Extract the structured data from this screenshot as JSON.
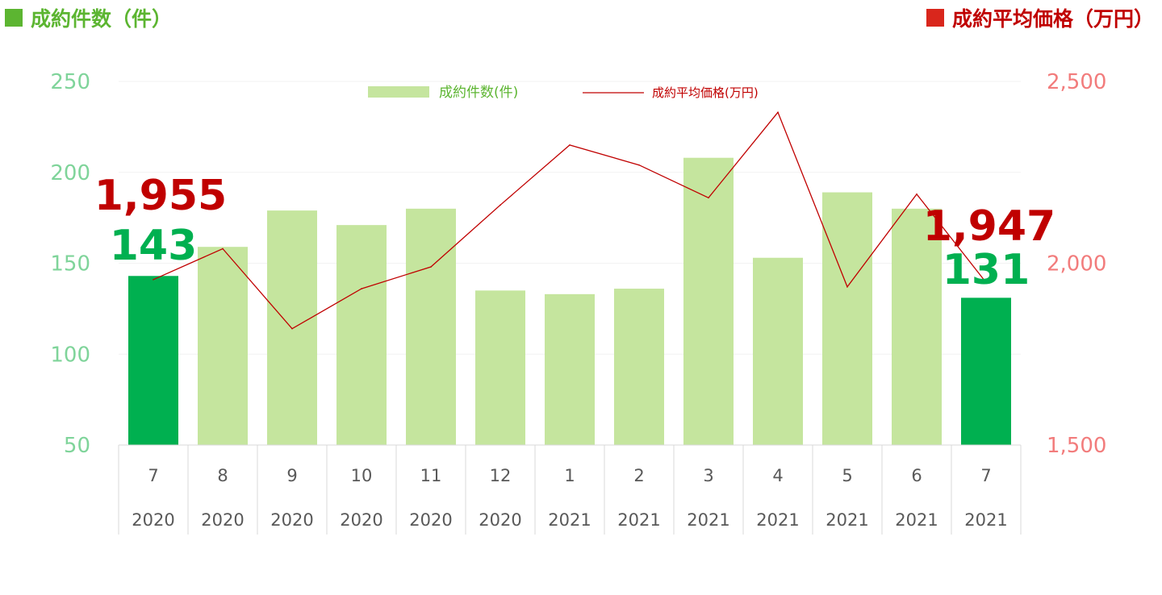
{
  "header": {
    "left_title": "成約件数（件）",
    "right_title": "成約平均価格（万円）"
  },
  "colors": {
    "bar": "#c5e59e",
    "bar_highlight": "#00b050",
    "line": "#c00000",
    "left_axis": "#7fd49a",
    "right_axis": "#f27c7c",
    "header_green": "#5cb531",
    "header_red": "#d9261c"
  },
  "chart_data": {
    "type": "bar",
    "categories": [
      "7",
      "8",
      "9",
      "10",
      "11",
      "12",
      "1",
      "2",
      "3",
      "4",
      "5",
      "6",
      "7"
    ],
    "years": [
      "2020",
      "2020",
      "2020",
      "2020",
      "2020",
      "2020",
      "2021",
      "2021",
      "2021",
      "2021",
      "2021",
      "2021",
      "2021"
    ],
    "series": [
      {
        "name": "成約件数(件)",
        "type": "bar",
        "axis": "left",
        "values": [
          143,
          159,
          179,
          171,
          180,
          135,
          133,
          136,
          208,
          153,
          189,
          180,
          131
        ]
      },
      {
        "name": "成約平均価格(万円)",
        "type": "line",
        "axis": "right",
        "values": [
          1955,
          2040,
          1820,
          1930,
          1990,
          2160,
          2325,
          2270,
          2180,
          2415,
          1935,
          2190,
          1947
        ]
      }
    ],
    "highlighted_bars": [
      0,
      12
    ],
    "left_axis": {
      "ylim": [
        50,
        250
      ],
      "ticks": [
        "250",
        "200",
        "150",
        "100",
        "50"
      ]
    },
    "right_axis": {
      "ylim": [
        1500,
        2500
      ],
      "ticks": [
        "2,500",
        "2,000",
        "1,500"
      ]
    },
    "legend": {
      "placement": "top-center"
    },
    "grid": true,
    "annotations": {
      "first_price": "1,955",
      "first_count": "143",
      "last_price": "1,947",
      "last_count": "131"
    }
  }
}
